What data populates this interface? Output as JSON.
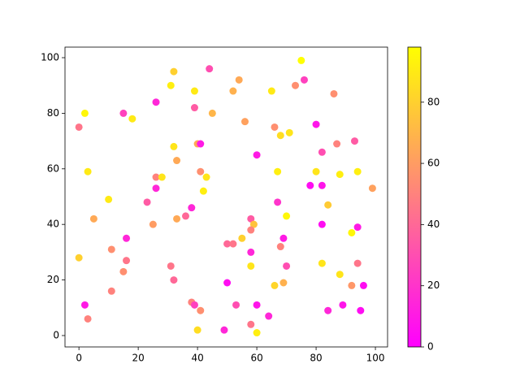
{
  "chart_data": {
    "type": "scatter",
    "x": [
      0,
      2,
      3,
      5,
      0,
      2,
      3,
      10,
      11,
      11,
      15,
      18,
      16,
      16,
      15,
      23,
      25,
      26,
      26,
      28,
      26,
      31,
      32,
      32,
      33,
      33,
      31,
      32,
      36,
      38,
      39,
      39,
      40,
      41,
      41,
      43,
      42,
      38,
      39,
      41,
      40,
      44,
      45,
      52,
      54,
      56,
      50,
      52,
      55,
      50,
      53,
      49,
      60,
      58,
      59,
      58,
      58,
      58,
      58,
      60,
      60,
      64,
      65,
      66,
      68,
      71,
      67,
      67,
      68,
      69,
      70,
      70,
      66,
      69,
      73,
      75,
      76,
      78,
      80,
      82,
      82,
      80,
      84,
      82,
      82,
      86,
      87,
      88,
      88,
      84,
      89,
      93,
      94,
      92,
      94,
      94,
      92,
      96,
      95,
      99
    ],
    "values": [
      75,
      80,
      59,
      42,
      28,
      11,
      6,
      49,
      31,
      16,
      80,
      78,
      35,
      27,
      23,
      48,
      40,
      84,
      57,
      57,
      53,
      90,
      95,
      68,
      63,
      42,
      25,
      20,
      43,
      46,
      88,
      82,
      69,
      69,
      59,
      57,
      52,
      12,
      11,
      9,
      2,
      96,
      80,
      88,
      92,
      77,
      33,
      33,
      35,
      19,
      11,
      2,
      65,
      42,
      40,
      38,
      30,
      25,
      4,
      1,
      11,
      7,
      88,
      75,
      72,
      73,
      59,
      48,
      32,
      35,
      43,
      25,
      18,
      19,
      90,
      99,
      92,
      54,
      76,
      66,
      54,
      59,
      47,
      40,
      26,
      87,
      69,
      58,
      22,
      9,
      11,
      70,
      59,
      37,
      39,
      26,
      18,
      18,
      9,
      53
    ],
    "color_values": [
      45,
      95,
      90,
      65,
      80,
      10,
      50,
      90,
      55,
      50,
      25,
      90,
      15,
      45,
      55,
      35,
      60,
      15,
      50,
      88,
      15,
      92,
      80,
      88,
      65,
      65,
      45,
      40,
      40,
      15,
      90,
      35,
      65,
      10,
      55,
      88,
      92,
      50,
      25,
      55,
      85,
      30,
      70,
      68,
      65,
      62,
      40,
      45,
      80,
      5,
      30,
      15,
      10,
      35,
      75,
      50,
      15,
      88,
      45,
      92,
      8,
      15,
      90,
      55,
      85,
      88,
      92,
      20,
      50,
      10,
      95,
      30,
      82,
      68,
      55,
      98,
      25,
      5,
      8,
      30,
      8,
      88,
      78,
      5,
      88,
      55,
      50,
      92,
      88,
      15,
      8,
      35,
      92,
      95,
      10,
      45,
      58,
      5,
      5,
      62
    ],
    "colormap": "spring",
    "xlim": [
      -4.7,
      104.1
    ],
    "ylim": [
      -4.1,
      103.8
    ],
    "xticks": [
      0,
      20,
      40,
      60,
      80,
      100
    ],
    "yticks": [
      0,
      20,
      40,
      60,
      80,
      100
    ],
    "clim": [
      0,
      98
    ],
    "cticks": [
      0,
      20,
      40,
      60,
      80
    ]
  }
}
